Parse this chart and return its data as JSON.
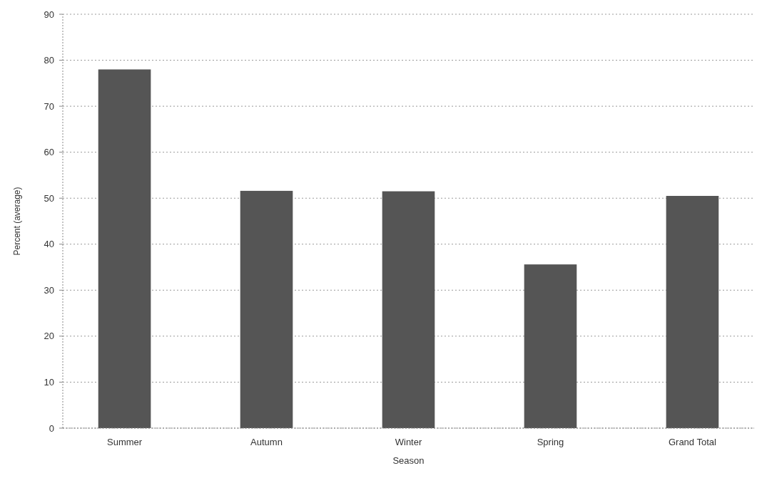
{
  "chart_data": {
    "type": "bar",
    "xlabel": "Season",
    "ylabel": "Percent (average)",
    "categories": [
      "Summer",
      "Autumn",
      "Winter",
      "Spring",
      "Grand Total"
    ],
    "values": [
      78,
      51.6,
      51.5,
      35.6,
      50.5
    ],
    "color": "#555555",
    "ylim": [
      0,
      90
    ],
    "yticks": [
      0,
      10,
      20,
      30,
      40,
      50,
      60,
      70,
      80,
      90
    ],
    "grid": "y"
  }
}
